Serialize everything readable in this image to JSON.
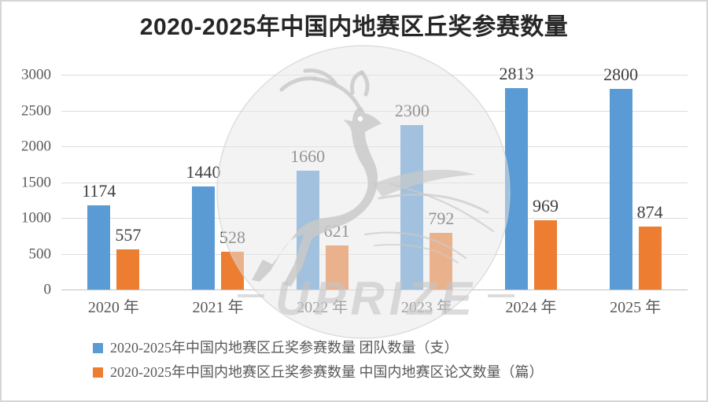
{
  "chart": {
    "title": "2020-2025年中国内地赛区丘奖参赛数量"
  },
  "watermark": {
    "text": "UPRIZE",
    "deer_icon": "leaping-deer",
    "color": "#c9c9c9"
  },
  "chart_data": {
    "type": "bar",
    "title": "2020-2025年中国内地赛区丘奖参赛数量",
    "categories": [
      "2020 年",
      "2021 年",
      "2022 年",
      "2023 年",
      "2024 年",
      "2025 年"
    ],
    "series": [
      {
        "key": "teams",
        "name": "2020-2025年中国内地赛区丘奖参赛数量 团队数量（支）",
        "color": "#5B9BD5",
        "values": [
          1174,
          1440,
          1660,
          2300,
          2813,
          2800
        ]
      },
      {
        "key": "papers",
        "name": "2020-2025年中国内地赛区丘奖参赛数量 中国内地赛区论文数量（篇）",
        "color": "#ED7D31",
        "values": [
          557,
          528,
          621,
          792,
          969,
          874
        ]
      }
    ],
    "xlabel": "",
    "ylabel": "",
    "ylim": [
      0,
      3000
    ],
    "yticks": [
      0,
      500,
      1000,
      1500,
      2000,
      2500,
      3000
    ],
    "grid": true,
    "data_labels": true,
    "legend_position": "bottom-left"
  },
  "legend": {
    "items": [
      {
        "label": "2020-2025年中国内地赛区丘奖参赛数量 团队数量（支）",
        "color": "#5B9BD5"
      },
      {
        "label": "2020-2025年中国内地赛区丘奖参赛数量 中国内地赛区论文数量（篇）",
        "color": "#ED7D31"
      }
    ]
  },
  "colors": {
    "background": "#ffffff",
    "gridline": "#dcdcdc",
    "axis_text": "#595959",
    "value_text": "#404040",
    "title_text": "#262626",
    "watermark_gray": "#c9c9c9"
  }
}
